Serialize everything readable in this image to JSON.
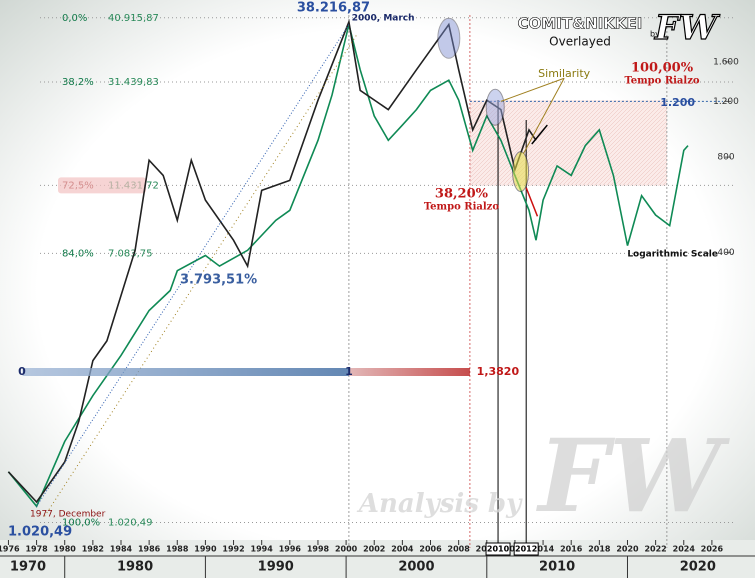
{
  "chart_data": {
    "type": "line",
    "title": "COMIT&NIKKEI",
    "subtitle": "Overlayed",
    "by": "by",
    "brand": "FW",
    "watermark": "Analysis by",
    "log_scale": true,
    "xlim": [
      1975.4,
      2027.5
    ],
    "ylim": [
      55,
      2250
    ],
    "xticks": [
      1976,
      1978,
      1980,
      1982,
      1984,
      1986,
      1988,
      1990,
      1992,
      1994,
      1996,
      1998,
      2000,
      2002,
      2004,
      2006,
      2008,
      2010,
      2012,
      2014,
      2016,
      2018,
      2020,
      2022,
      2024,
      2026
    ],
    "decades": [
      1970,
      1980,
      1990,
      2000,
      2010,
      2020
    ],
    "yticks": [
      400,
      800,
      {
        "value": 1200,
        "label": "1.200"
      },
      {
        "value": 1600,
        "label": "1.600"
      }
    ],
    "series": [
      {
        "name": "COMIT",
        "color": "#0f8a55",
        "x": [
          1976,
          1978,
          1980,
          1982,
          1984,
          1986,
          1987.5,
          1988,
          1990,
          1991,
          1993,
          1995,
          1996,
          1998,
          1999,
          2000.2,
          2001,
          2002,
          2003,
          2004,
          2005,
          2006,
          2007.3,
          2008,
          2009,
          2010,
          2011,
          2012,
          2013,
          2013.5,
          2014,
          2015,
          2016,
          2017,
          2018,
          2019,
          2020,
          2021,
          2022,
          2023,
          2024,
          2024.3
        ],
        "values": [
          81,
          63,
          101,
          141,
          189,
          262,
          303,
          350,
          391,
          362,
          406,
          505,
          543,
          904,
          1256,
          2100,
          1510,
          1080,
          904,
          1010,
          1130,
          1300,
          1400,
          1210,
          840,
          1080,
          904,
          700,
          543,
          437,
          585,
          750,
          700,
          870,
          975,
          700,
          420,
          604,
          525,
          486,
          840,
          870
        ]
      },
      {
        "name": "NIKKEI",
        "color": "#222222",
        "x": [
          1976,
          1978,
          1980,
          1981,
          1982,
          1983,
          1985,
          1986,
          1987,
          1988,
          1989,
          1990,
          1992,
          1993,
          1994,
          1996,
          1998,
          2000.2,
          2001,
          2003,
          2005,
          2007.3,
          2008,
          2009,
          2010,
          2011,
          2012,
          2013,
          2013.5
        ],
        "values": [
          81,
          65,
          87,
          117,
          182,
          210,
          406,
          782,
          700,
          505,
          782,
          585,
          437,
          362,
          628,
          675,
          1210,
          2140,
          1300,
          1130,
          1510,
          2100,
          1510,
          975,
          1210,
          1130,
          730,
          975,
          904
        ]
      }
    ],
    "fib_levels": [
      {
        "label": "0,0%",
        "amount": "40.915,87",
        "value": 2205
      },
      {
        "label": "38,2%",
        "amount": "31.439,83",
        "value": 1382
      },
      {
        "label": "72,5%",
        "amount": "11.431,72",
        "value": 651
      },
      {
        "label": "84,0%",
        "amount": "7.083,75",
        "value": 397
      },
      {
        "label": "100,0%",
        "amount": "1.020,49",
        "value": 56
      }
    ],
    "annotations": {
      "peak_value": "38.216,87",
      "peak": "2000, March",
      "low": "1977, December",
      "low_value": "1.020,49",
      "mid_value": "3.793,51%",
      "t38": "38,20%",
      "t38_sub": "Tempo Rialzo",
      "t100": "100,00%",
      "t100_sub": "Tempo Rialzo",
      "similarity": "Similarity",
      "log": "Logarithmic Scale",
      "level_1200": "1.200",
      "proj0": "0",
      "proj1": "1",
      "proj2": "1,3820",
      "y2010": "2010",
      "y2012": "2012"
    }
  }
}
